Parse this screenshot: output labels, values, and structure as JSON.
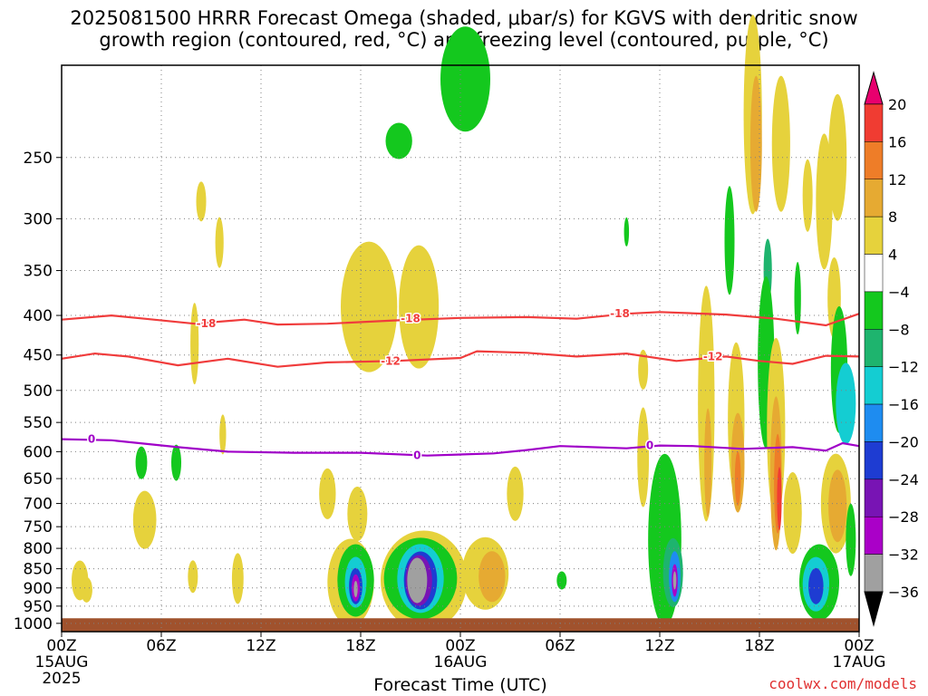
{
  "title": {
    "line1": "2025081500 HRRR Forecast Omega (shaded, μbar/s) for KGVS with dendritic snow",
    "line2": "growth region (contoured, red, °C) and freezing level (contoured, purple, °C)"
  },
  "xlabel": "Forecast Time (UTC)",
  "credit": "coolwx.com/models",
  "chart_data": {
    "type": "heatmap",
    "title": "2025081500 HRRR Forecast Omega (shaded, μbar/s) for KGVS",
    "xlabel": "Forecast Time (UTC)",
    "ylabel": "",
    "x_unit": "forecast hours from 2025-08-15 00Z",
    "xlim": [
      0,
      48
    ],
    "ylim_hpa": [
      1025,
      190
    ],
    "y_scale": "log-pressure",
    "grid": true,
    "x_ticks": [
      {
        "h": 0,
        "label": "00Z",
        "sub1": "15AUG",
        "sub2": "2025"
      },
      {
        "h": 6,
        "label": "06Z",
        "sub1": "",
        "sub2": ""
      },
      {
        "h": 12,
        "label": "12Z",
        "sub1": "",
        "sub2": ""
      },
      {
        "h": 18,
        "label": "18Z",
        "sub1": "",
        "sub2": ""
      },
      {
        "h": 24,
        "label": "00Z",
        "sub1": "16AUG",
        "sub2": ""
      },
      {
        "h": 30,
        "label": "06Z",
        "sub1": "",
        "sub2": ""
      },
      {
        "h": 36,
        "label": "12Z",
        "sub1": "",
        "sub2": ""
      },
      {
        "h": 42,
        "label": "18Z",
        "sub1": "",
        "sub2": ""
      },
      {
        "h": 48,
        "label": "00Z",
        "sub1": "17AUG",
        "sub2": ""
      }
    ],
    "y_ticks": [
      250,
      300,
      350,
      400,
      450,
      500,
      550,
      600,
      650,
      700,
      750,
      800,
      850,
      900,
      950,
      1000
    ],
    "colorbar": {
      "levels": [
        "20",
        "16",
        "12",
        "8",
        "4",
        "−4",
        "−8",
        "−12",
        "−16",
        "−20",
        "−24",
        "−28",
        "−32",
        "−36"
      ],
      "colors": [
        "#e8006e",
        "#f03c32",
        "#ee7d28",
        "#e6aa32",
        "#e6d23c",
        "#ffffff",
        "#14c81e",
        "#1eb46e",
        "#14cdd2",
        "#1e8cf0",
        "#1e3cd2",
        "#7814b4",
        "#aa00c8",
        "#a0a0a0",
        "#000000"
      ]
    },
    "ground_hpa": 985,
    "ground_color": "#a0522d",
    "series": [
      {
        "name": "",
        "color": "#f03c3c",
        "label_text": "-18",
        "points": [
          [
            0,
            405
          ],
          [
            3,
            400
          ],
          [
            5,
            404
          ],
          [
            8,
            410
          ],
          [
            11,
            405
          ],
          [
            13,
            411
          ],
          [
            16,
            410
          ],
          [
            20,
            406
          ],
          [
            24,
            403
          ],
          [
            28,
            402
          ],
          [
            31,
            404
          ],
          [
            34,
            398
          ],
          [
            36,
            396
          ],
          [
            40,
            399
          ],
          [
            43,
            404
          ],
          [
            46,
            412
          ],
          [
            48,
            398
          ]
        ],
        "label_at": [
          [
            8.7,
            410
          ],
          [
            21,
            404
          ],
          [
            33.6,
            398
          ]
        ]
      },
      {
        "name": "",
        "color": "#f03c3c",
        "label_text": "-12",
        "points": [
          [
            0,
            455
          ],
          [
            2,
            448
          ],
          [
            4,
            452
          ],
          [
            7,
            464
          ],
          [
            10,
            455
          ],
          [
            13,
            466
          ],
          [
            16,
            460
          ],
          [
            20,
            458
          ],
          [
            24,
            454
          ],
          [
            25,
            445
          ],
          [
            28,
            447
          ],
          [
            31,
            452
          ],
          [
            34,
            448
          ],
          [
            37,
            458
          ],
          [
            40,
            452
          ],
          [
            42,
            458
          ],
          [
            44,
            462
          ],
          [
            46,
            451
          ],
          [
            48,
            452
          ]
        ],
        "label_at": [
          [
            19.8,
            458
          ],
          [
            39.2,
            452
          ]
        ]
      },
      {
        "name": "",
        "color": "#a000c8",
        "label_text": "0",
        "points": [
          [
            0,
            578
          ],
          [
            3,
            580
          ],
          [
            7,
            592
          ],
          [
            10,
            600
          ],
          [
            14,
            602
          ],
          [
            18,
            602
          ],
          [
            22,
            607
          ],
          [
            26,
            603
          ],
          [
            28,
            597
          ],
          [
            30,
            590
          ],
          [
            34,
            594
          ],
          [
            36,
            589
          ],
          [
            38,
            590
          ],
          [
            41,
            595
          ],
          [
            44,
            592
          ],
          [
            46,
            598
          ],
          [
            47,
            585
          ],
          [
            48,
            590
          ]
        ],
        "label_at": [
          [
            1.8,
            578
          ],
          [
            21.4,
            607
          ],
          [
            35.4,
            589
          ]
        ]
      }
    ]
  }
}
